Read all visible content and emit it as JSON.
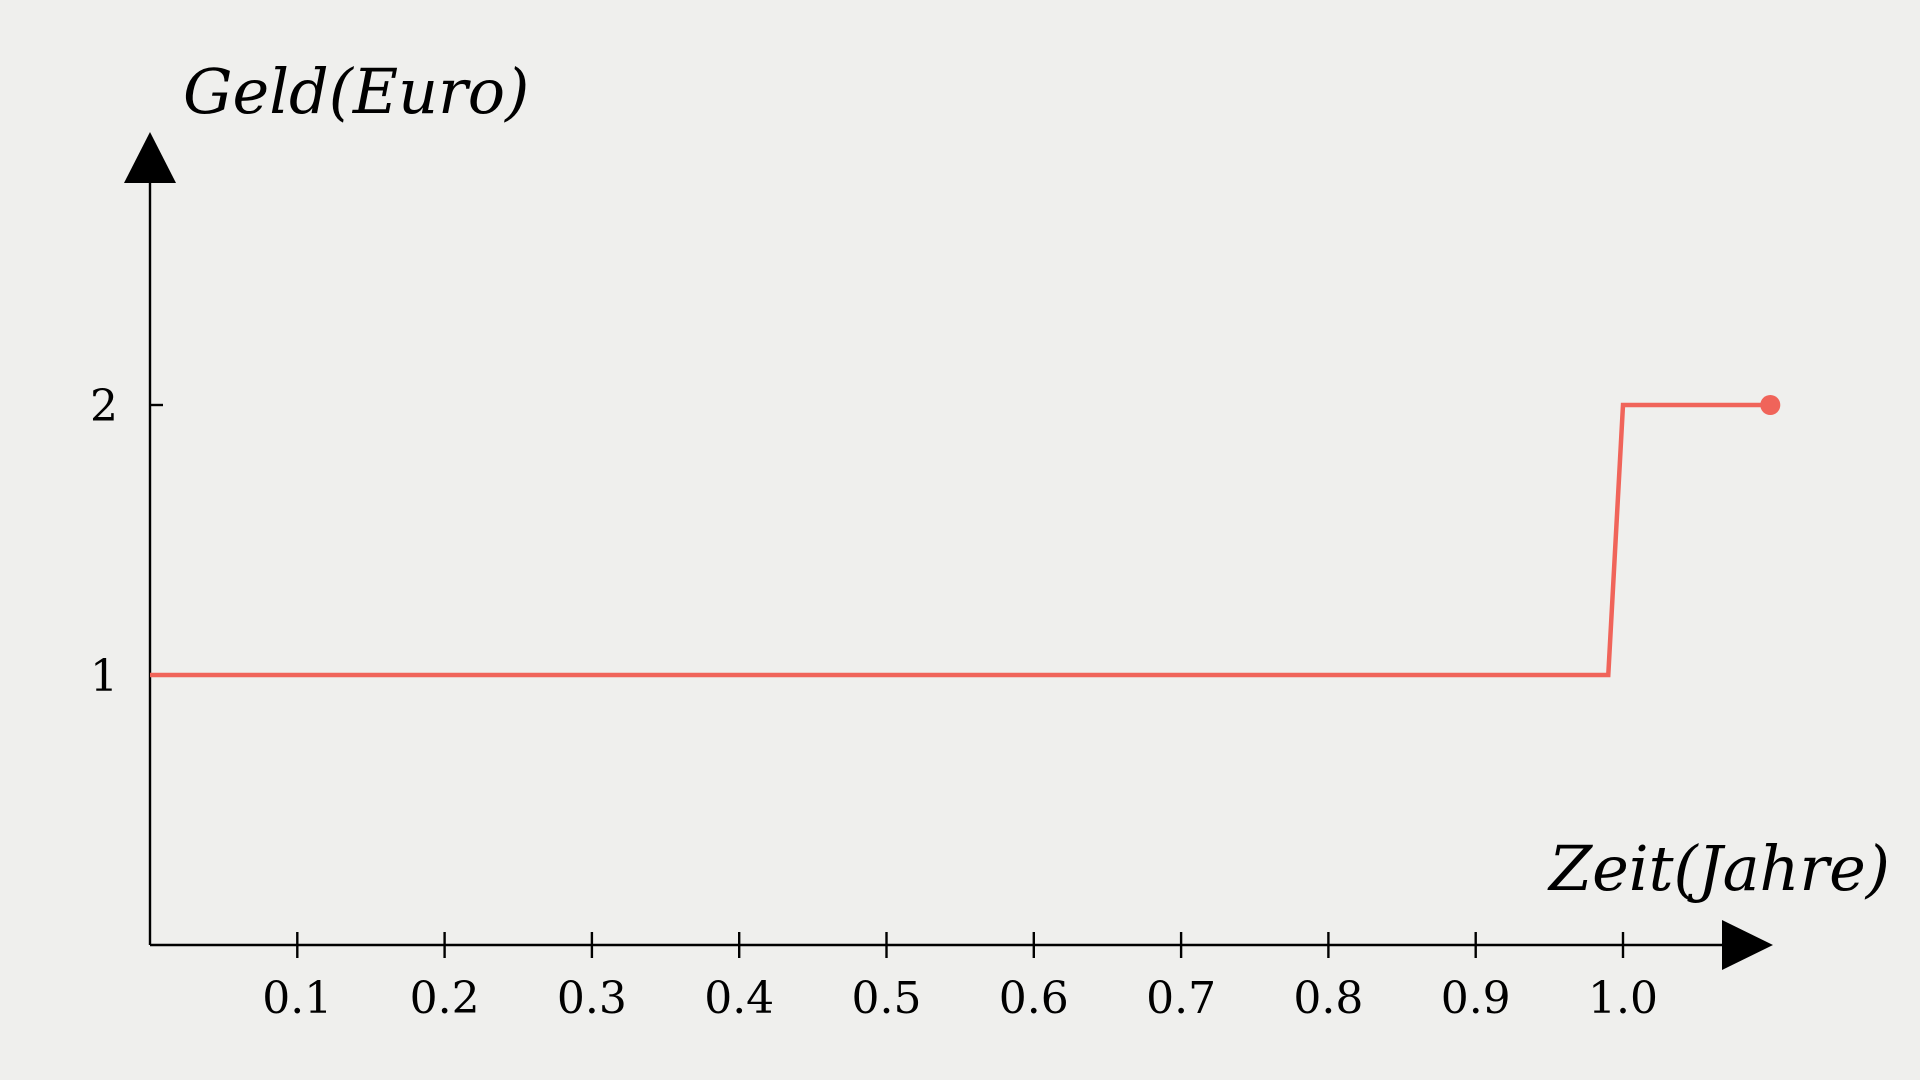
{
  "chart_data": {
    "type": "line",
    "xlabel": "Zeit(Jahre)",
    "ylabel": "Geld(Euro)",
    "xlim": [
      0,
      1.1
    ],
    "ylim": [
      0,
      2.8
    ],
    "x_ticks": [
      0.1,
      0.2,
      0.3,
      0.4,
      0.5,
      0.6,
      0.7,
      0.8,
      0.9,
      1.0
    ],
    "x_tick_labels": [
      "0.1",
      "0.2",
      "0.3",
      "0.4",
      "0.5",
      "0.6",
      "0.7",
      "0.8",
      "0.9",
      "1.0"
    ],
    "y_ticks": [
      1,
      2
    ],
    "y_tick_labels": [
      "1",
      "2"
    ],
    "grid": false,
    "series": [
      {
        "color": "#f0645a",
        "x": [
          0,
          0.99,
          1.0,
          1.1
        ],
        "y": [
          1,
          1,
          2,
          2
        ],
        "end_marker": true
      }
    ]
  },
  "colors": {
    "background": "#efefed",
    "axis": "#000000",
    "series": "#f0645a"
  }
}
